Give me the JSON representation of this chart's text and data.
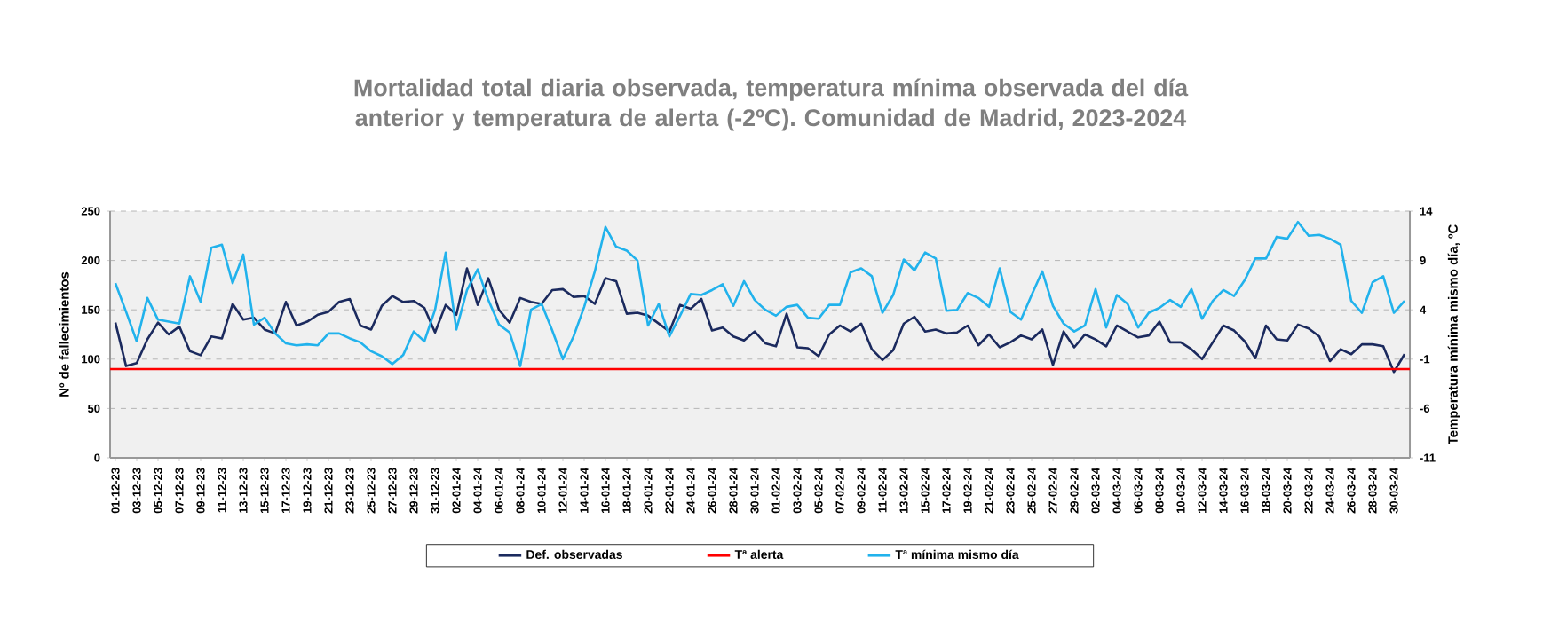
{
  "chart_data": {
    "type": "line",
    "title": "Mortalidad total diaria observada, temperatura mínima observada del día anterior y temperatura de alerta (-2ºC). Comunidad de Madrid, 2023-2024",
    "ylabel": "Nº de fallecimientos",
    "y2label": "Temperatura mínima mismo día, ºC",
    "categories": [
      "01-12-23",
      null,
      "03-12-23",
      null,
      "05-12-23",
      null,
      "07-12-23",
      null,
      "09-12-23",
      null,
      "11-12-23",
      null,
      "13-12-23",
      null,
      "15-12-23",
      null,
      "17-12-23",
      null,
      "19-12-23",
      null,
      "21-12-23",
      null,
      "23-12-23",
      null,
      "25-12-23",
      null,
      "27-12-23",
      null,
      "29-12-23",
      null,
      "31-12-23",
      null,
      "02-01-24",
      null,
      "04-01-24",
      null,
      "06-01-24",
      null,
      "08-01-24",
      null,
      "10-01-24",
      null,
      "12-01-24",
      null,
      "14-01-24",
      null,
      "16-01-24",
      null,
      "18-01-24",
      null,
      "20-01-24",
      null,
      "22-01-24",
      null,
      "24-01-24",
      null,
      "26-01-24",
      null,
      "28-01-24",
      null,
      "30-01-24",
      null,
      "01-02-24",
      null,
      "03-02-24",
      null,
      "05-02-24",
      null,
      "07-02-24",
      null,
      "09-02-24",
      null,
      "11-02-24",
      null,
      "13-02-24",
      null,
      "15-02-24",
      null,
      "17-02-24",
      null,
      "19-02-24",
      null,
      "21-02-24",
      null,
      "23-02-24",
      null,
      "25-02-24",
      null,
      "27-02-24",
      null,
      "29-02-24",
      null,
      "02-03-24",
      null,
      "04-03-24",
      null,
      "06-03-24",
      null,
      "08-03-24",
      null,
      "10-03-24",
      null,
      "12-03-24",
      null,
      "14-03-24",
      null,
      "16-03-24",
      null,
      "18-03-24",
      null,
      "20-03-24",
      null,
      "22-03-24",
      null,
      "24-03-24",
      null,
      "26-03-24",
      null,
      "28-03-24",
      null,
      "30-03-24",
      null
    ],
    "series": [
      {
        "name": "Def. observadas",
        "color": "#1b2a5e",
        "values": [
          137,
          93,
          96,
          120,
          137,
          125,
          133,
          108,
          104,
          123,
          121,
          156,
          140,
          142,
          130,
          126,
          158,
          134,
          138,
          145,
          148,
          158,
          161,
          134,
          130,
          154,
          164,
          158,
          159,
          152,
          127,
          155,
          145,
          192,
          155,
          182,
          150,
          137,
          162,
          158,
          156,
          170,
          171,
          163,
          164,
          156,
          182,
          179,
          146,
          147,
          144,
          136,
          128,
          155,
          151,
          161,
          129,
          132,
          123,
          119,
          128,
          116,
          113,
          146,
          112,
          111,
          103,
          125,
          134,
          128,
          136,
          110,
          99,
          109,
          136,
          143,
          128,
          130,
          126,
          127,
          134,
          114,
          125,
          112,
          117,
          124,
          120,
          130,
          94,
          128,
          112,
          125,
          120,
          113,
          134,
          128,
          122,
          124,
          138,
          117,
          117,
          110,
          100,
          117,
          134,
          129,
          118,
          101,
          134,
          120,
          119,
          135,
          131,
          123,
          98,
          110,
          105,
          115,
          115,
          113,
          87,
          105
        ]
      },
      {
        "name": "Tª mínima mismo día",
        "color": "#21b2ec",
        "axis": "y2",
        "values": [
          6.7,
          3.8,
          0.8,
          5.2,
          3.0,
          2.8,
          2.6,
          7.4,
          4.8,
          10.3,
          10.6,
          6.7,
          9.6,
          2.5,
          3.2,
          1.6,
          0.6,
          0.4,
          0.5,
          0.4,
          1.6,
          1.6,
          1.1,
          0.7,
          -0.2,
          -0.7,
          -1.5,
          -0.6,
          1.8,
          0.8,
          4.0,
          9.8,
          2.0,
          6.0,
          8.1,
          5.0,
          2.5,
          1.7,
          -1.7,
          4.0,
          4.6,
          1.9,
          -1.0,
          1.3,
          4.3,
          7.9,
          12.4,
          10.4,
          10.0,
          9.0,
          2.4,
          4.6,
          1.3,
          3.4,
          5.6,
          5.5,
          6.0,
          6.6,
          4.4,
          6.9,
          5.0,
          4.0,
          3.4,
          4.3,
          4.5,
          3.2,
          3.1,
          4.5,
          4.5,
          7.8,
          8.2,
          7.4,
          3.7,
          5.5,
          9.1,
          8.0,
          9.8,
          9.2,
          3.9,
          4.0,
          5.7,
          5.2,
          4.3,
          8.2,
          3.8,
          3.0,
          5.5,
          7.9,
          4.4,
          2.6,
          1.8,
          2.4,
          6.1,
          2.2,
          5.5,
          4.6,
          2.2,
          3.7,
          4.2,
          5.0,
          4.3,
          6.1,
          3.1,
          4.9,
          6.0,
          5.4,
          7.0,
          9.2,
          9.2,
          11.4,
          11.2,
          12.9,
          11.5,
          11.6,
          11.2,
          10.6,
          4.9,
          3.7,
          6.8,
          7.4,
          3.7,
          4.9
        ]
      }
    ],
    "ref_lines": [
      {
        "axis": "y2",
        "value": -2,
        "label": "Tª alerta",
        "color": "#ff0000"
      }
    ],
    "ylim": [
      0,
      250
    ],
    "yticks": [
      0,
      50,
      100,
      150,
      200,
      250
    ],
    "y2lim": [
      -11,
      14
    ],
    "y2ticks": [
      -11,
      -6,
      -1,
      4,
      9,
      14
    ],
    "grid": "y",
    "legend": "bottom"
  }
}
